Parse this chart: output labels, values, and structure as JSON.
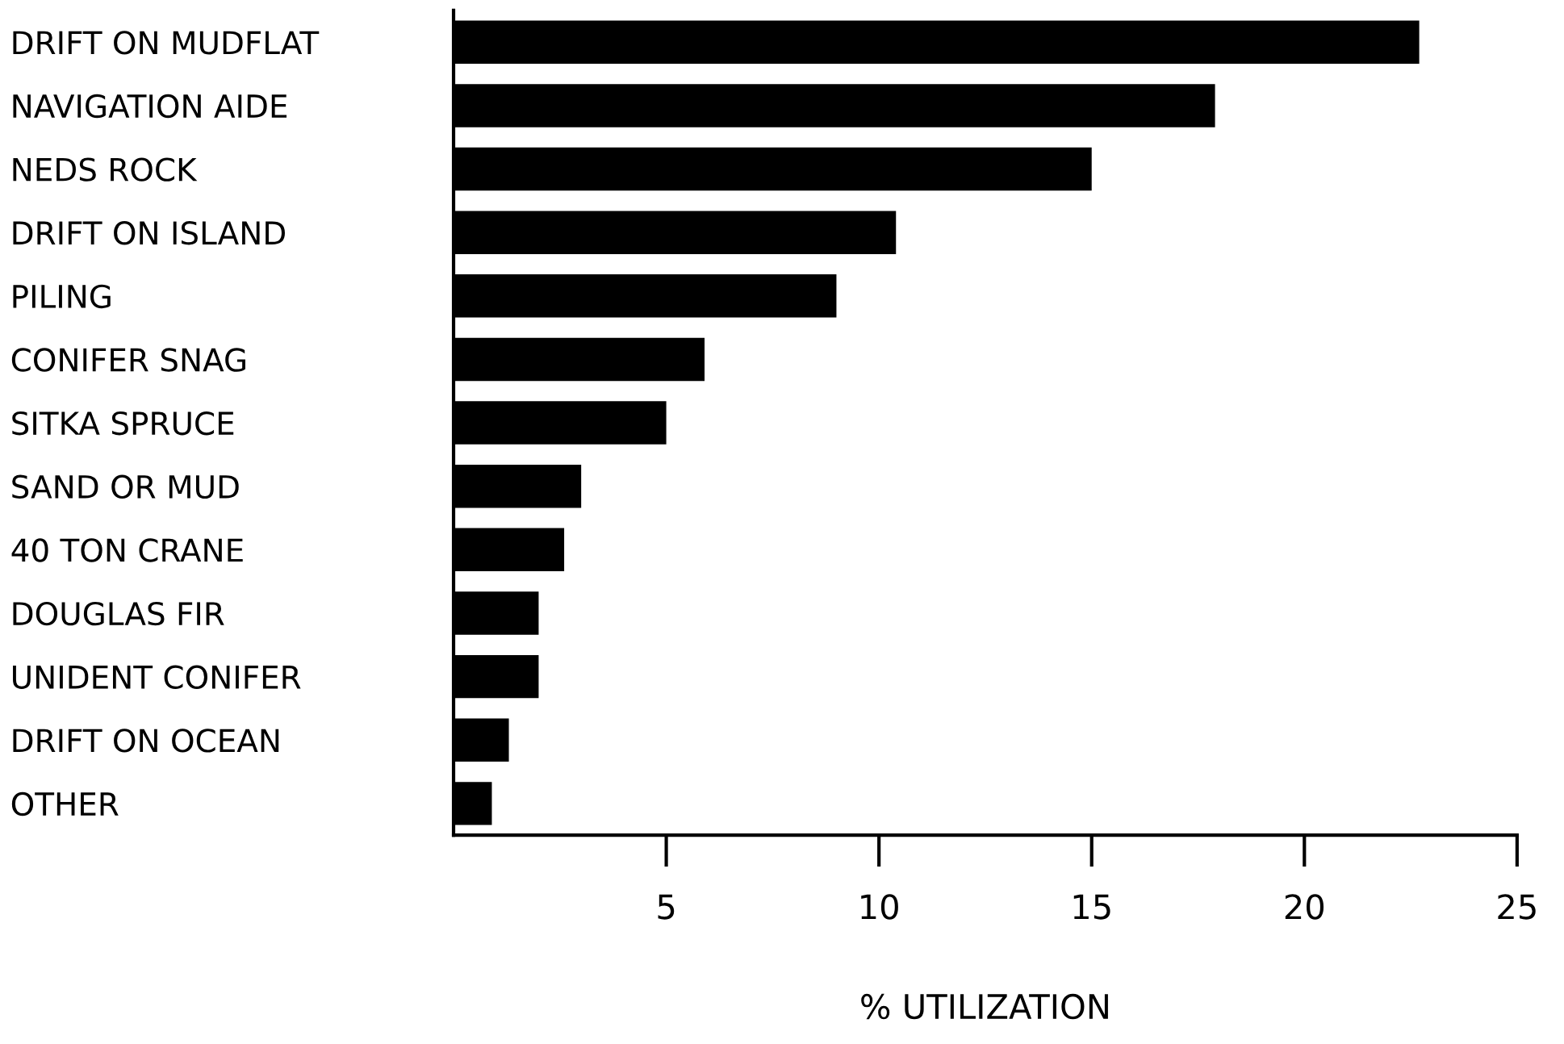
{
  "chart_data": {
    "type": "bar",
    "orientation": "horizontal",
    "xlabel": "% UTILIZATION",
    "categories": [
      "DRIFT ON MUDFLAT",
      "NAVIGATION AIDE",
      "NEDS ROCK",
      "DRIFT ON ISLAND",
      "PILING",
      "CONIFER SNAG",
      "SITKA SPRUCE",
      "SAND OR MUD",
      "40 TON CRANE",
      "DOUGLAS FIR",
      "UNIDENT CONIFER",
      "DRIFT ON OCEAN",
      "OTHER"
    ],
    "values": [
      22.7,
      17.9,
      15.0,
      10.4,
      9.0,
      5.9,
      5.0,
      3.0,
      2.6,
      2.0,
      2.0,
      1.3,
      0.9
    ],
    "color": "#000000",
    "xlim": [
      0,
      25
    ],
    "xticks": [
      5,
      10,
      15,
      20,
      25
    ],
    "grid": false
  }
}
